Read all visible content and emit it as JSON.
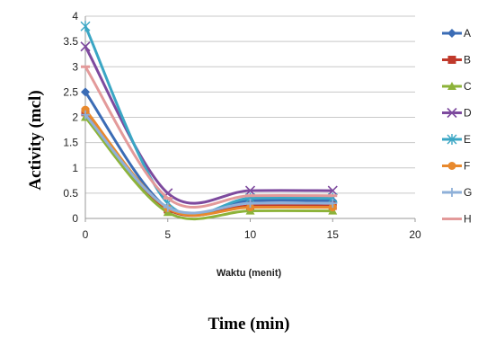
{
  "chart_data": {
    "type": "line",
    "title": "",
    "xlabel": "Waktu (menit)",
    "ylabel": "Activity (mcl)",
    "caption": "Time (min)",
    "xlim": [
      0,
      20
    ],
    "ylim": [
      0,
      4
    ],
    "x_ticks": [
      "0",
      "5",
      "10",
      "15",
      "20"
    ],
    "y_ticks": [
      "0",
      "0.5",
      "1",
      "1.5",
      "2",
      "2.5",
      "3",
      "3.5",
      "4"
    ],
    "grid": "horizontal",
    "legend_position": "right",
    "x": [
      0,
      5,
      10,
      15
    ],
    "series": [
      {
        "name": "A",
        "color": "#3b6cb5",
        "marker": "diamond",
        "values": [
          2.5,
          0.2,
          0.35,
          0.35
        ]
      },
      {
        "name": "B",
        "color": "#c0392b",
        "marker": "square",
        "values": [
          2.1,
          0.18,
          0.25,
          0.25
        ]
      },
      {
        "name": "C",
        "color": "#8db33a",
        "marker": "triangle",
        "values": [
          2.0,
          0.12,
          0.15,
          0.15
        ]
      },
      {
        "name": "D",
        "color": "#7d4a9e",
        "marker": "x",
        "values": [
          3.4,
          0.5,
          0.55,
          0.55
        ]
      },
      {
        "name": "E",
        "color": "#3aa6c4",
        "marker": "star",
        "values": [
          3.8,
          0.3,
          0.4,
          0.4
        ]
      },
      {
        "name": "F",
        "color": "#e8892d",
        "marker": "circle",
        "values": [
          2.15,
          0.2,
          0.22,
          0.22
        ]
      },
      {
        "name": "G",
        "color": "#8fb0d9",
        "marker": "plus",
        "values": [
          2.05,
          0.22,
          0.3,
          0.3
        ]
      },
      {
        "name": "H",
        "color": "#e39a9a",
        "marker": "dash",
        "values": [
          3.0,
          0.4,
          0.45,
          0.45
        ]
      }
    ]
  }
}
